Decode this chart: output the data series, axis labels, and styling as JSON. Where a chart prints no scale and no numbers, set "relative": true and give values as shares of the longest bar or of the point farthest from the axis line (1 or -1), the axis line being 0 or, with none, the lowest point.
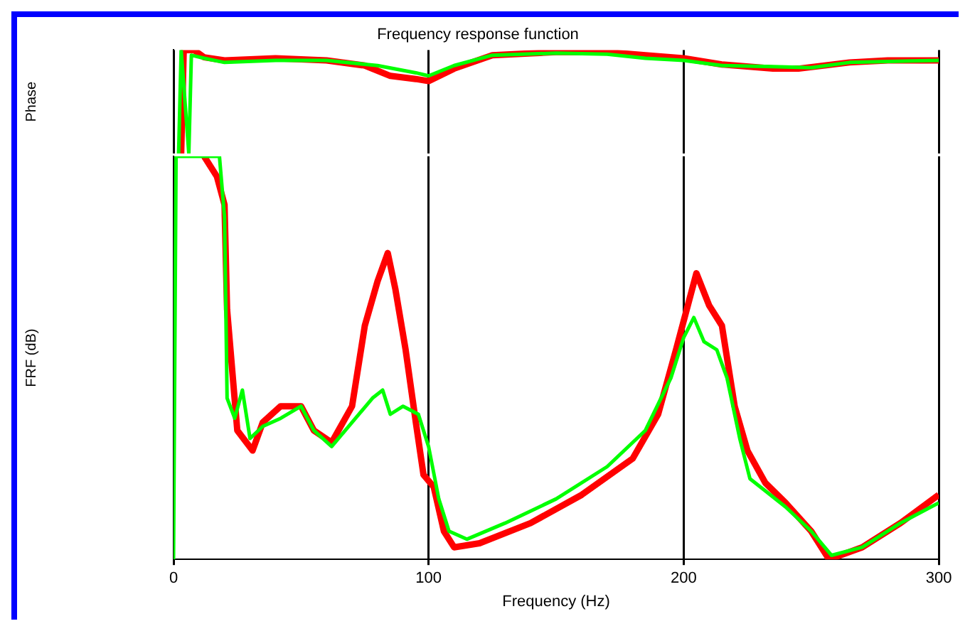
{
  "chart_data": [
    {
      "type": "line",
      "title": "Frequency response function",
      "ylabel": "Phase",
      "relative": true,
      "xlim": [
        0,
        300
      ],
      "xticks": [
        0,
        100,
        200,
        300
      ],
      "grid": "x",
      "tick_labels": false,
      "marker": "none",
      "series": [
        {
          "color": "#ff0000",
          "x": [
            3,
            4,
            8,
            12,
            20,
            40,
            60,
            75,
            85,
            95,
            100,
            110,
            125,
            150,
            170,
            185,
            200,
            215,
            235,
            245,
            265,
            280,
            300
          ],
          "values": [
            0.0,
            1.0,
            1.0,
            0.93,
            0.9,
            0.92,
            0.9,
            0.85,
            0.75,
            0.72,
            0.7,
            0.82,
            0.95,
            0.98,
            0.98,
            0.95,
            0.92,
            0.86,
            0.82,
            0.82,
            0.88,
            0.9,
            0.9
          ]
        },
        {
          "color": "#00ff00",
          "x": [
            2,
            3,
            6,
            7,
            12,
            20,
            40,
            60,
            80,
            95,
            100,
            110,
            125,
            150,
            170,
            185,
            200,
            215,
            235,
            250,
            265,
            300
          ],
          "values": [
            0.0,
            1.0,
            0.0,
            0.95,
            0.92,
            0.88,
            0.9,
            0.9,
            0.85,
            0.78,
            0.75,
            0.85,
            0.95,
            0.97,
            0.96,
            0.92,
            0.9,
            0.85,
            0.84,
            0.83,
            0.88,
            0.9
          ]
        }
      ]
    },
    {
      "type": "line",
      "xlabel": "Frequency (Hz)",
      "ylabel": "FRF (dB)",
      "relative": true,
      "xlim": [
        0,
        300
      ],
      "xticks": [
        0,
        100,
        200,
        300
      ],
      "grid": "x",
      "tick_labels": "x",
      "marker": "none",
      "series": [
        {
          "color": "#ff0000",
          "x": [
            12,
            17,
            20,
            21,
            25,
            31,
            35,
            42,
            50,
            55,
            62,
            70,
            75,
            80,
            84,
            87,
            91,
            95,
            98,
            102,
            106,
            110,
            120,
            140,
            160,
            180,
            190,
            197,
            205,
            210,
            215,
            220,
            225,
            232,
            240,
            250,
            257,
            270,
            285,
            300
          ],
          "values": [
            1.0,
            0.95,
            0.88,
            0.62,
            0.32,
            0.27,
            0.34,
            0.38,
            0.38,
            0.32,
            0.29,
            0.38,
            0.58,
            0.69,
            0.76,
            0.67,
            0.52,
            0.34,
            0.21,
            0.18,
            0.07,
            0.03,
            0.04,
            0.09,
            0.16,
            0.25,
            0.36,
            0.52,
            0.71,
            0.63,
            0.58,
            0.38,
            0.27,
            0.19,
            0.14,
            0.07,
            0.0,
            0.03,
            0.09,
            0.16
          ]
        },
        {
          "color": "#00ff00",
          "x": [
            0,
            1,
            18,
            20,
            21,
            24,
            27,
            30,
            35,
            42,
            50,
            55,
            62,
            70,
            78,
            82,
            85,
            90,
            96,
            100,
            104,
            108,
            115,
            130,
            150,
            170,
            185,
            195,
            200,
            204,
            208,
            213,
            217,
            222,
            226,
            232,
            240,
            250,
            258,
            270,
            285,
            300
          ],
          "values": [
            0.0,
            1.0,
            1.0,
            0.85,
            0.4,
            0.35,
            0.42,
            0.3,
            0.33,
            0.35,
            0.38,
            0.32,
            0.28,
            0.34,
            0.4,
            0.42,
            0.36,
            0.38,
            0.36,
            0.28,
            0.15,
            0.07,
            0.05,
            0.09,
            0.15,
            0.23,
            0.32,
            0.45,
            0.55,
            0.6,
            0.54,
            0.52,
            0.45,
            0.3,
            0.2,
            0.17,
            0.13,
            0.07,
            0.01,
            0.03,
            0.09,
            0.14
          ]
        }
      ]
    }
  ]
}
